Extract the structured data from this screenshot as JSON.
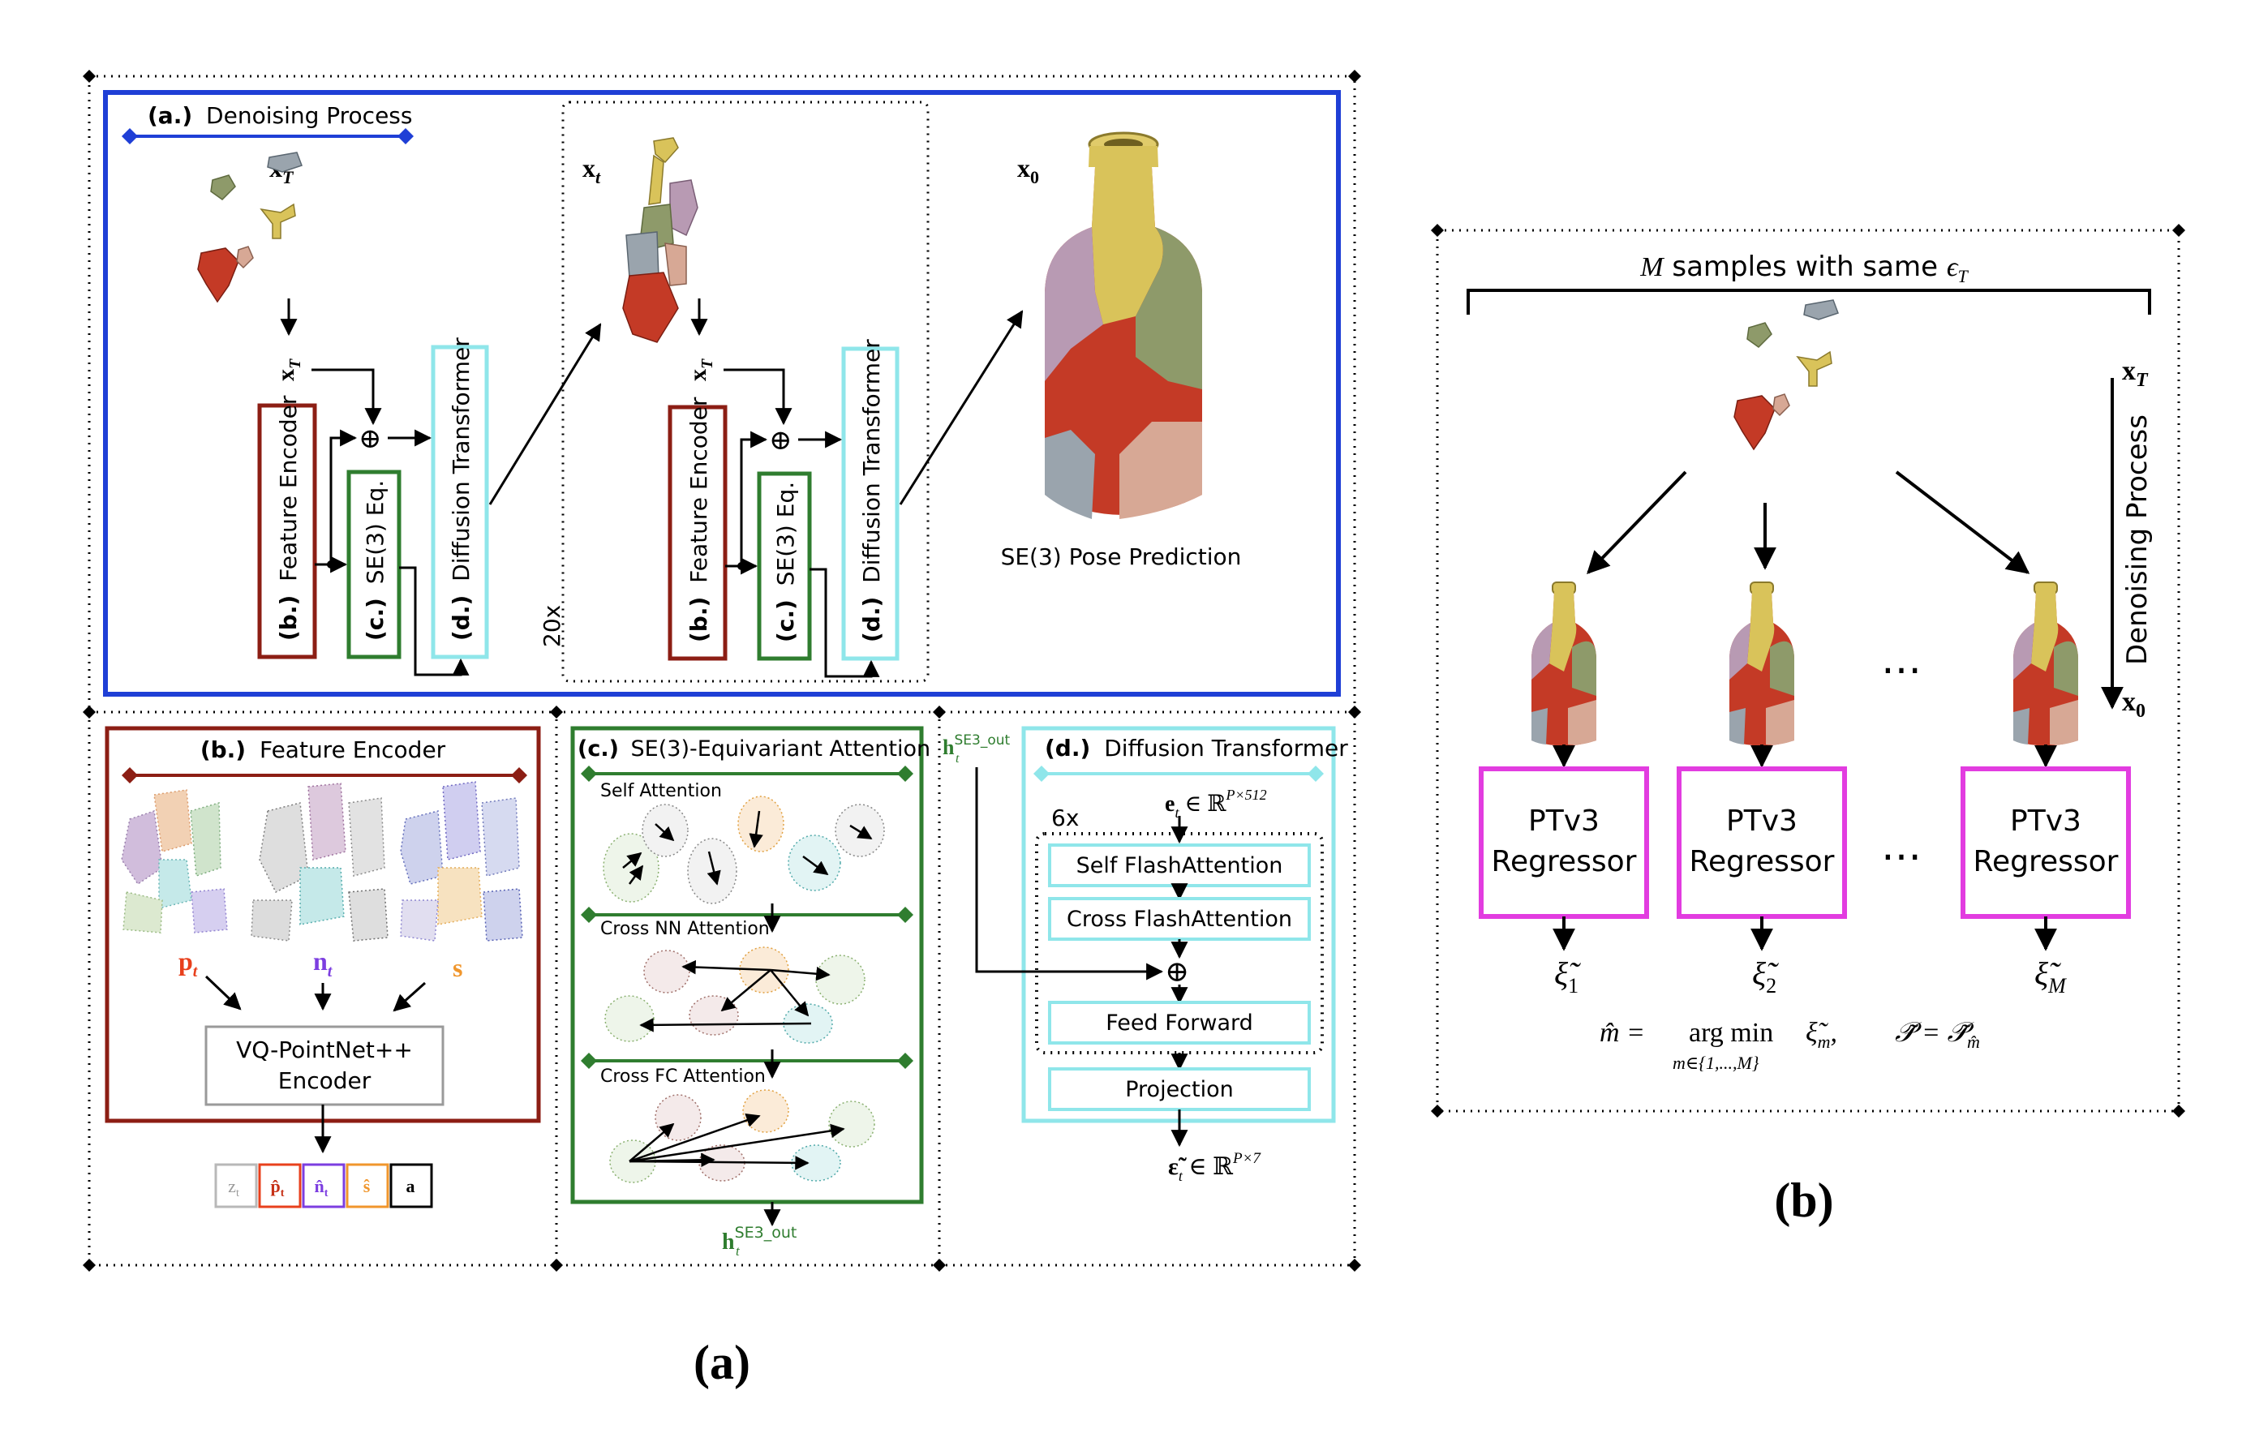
{
  "colors": {
    "blue": "#1f3fd6",
    "brown": "#8c1e14",
    "green": "#2f7d2f",
    "cyan": "#8fe6ea",
    "magenta": "#e23ce0",
    "gray_box": "#9a9a9a",
    "red_frag": "#c43a26",
    "yellow_frag": "#d9c35a",
    "olive_frag": "#8e9a6a",
    "lilac_frag": "#b89ab3",
    "peach_frag": "#d7a895",
    "slate_frag": "#9aa4ad"
  },
  "panel_a": {
    "denoising": {
      "tag": "(a.)",
      "label": "Denoising Process",
      "xT_top": "x",
      "xT_top_sub": "T",
      "xT_arrow": "x",
      "xT_arrow_sub": "T",
      "xt": "x",
      "xt_sub": "t",
      "xT_arrow2": "x",
      "xT_arrow2_sub": "T",
      "x0": "x",
      "x0_sub": "0",
      "repeat": "20x",
      "feature_encoder_tag": "(b.)",
      "feature_encoder": "Feature Encoder",
      "se3_tag": "(c.)",
      "se3": "SE(3) Eq.",
      "dt_tag": "(d.)",
      "dt": "Diffusion Transformer",
      "pose_prediction": "SE(3) Pose Prediction",
      "plus": "⊕"
    },
    "feature_encoder": {
      "tag": "(b.)",
      "title": "Feature Encoder",
      "p_label": "p",
      "p_sub": "t",
      "n_label": "n",
      "n_sub": "t",
      "s_label": "s",
      "encoder_line1": "VQ-PointNet++",
      "encoder_line2": "Encoder",
      "tokens": [
        {
          "text": "z",
          "sub": "t"
        },
        {
          "text": "p̂",
          "sub": "t"
        },
        {
          "text": "n̂",
          "sub": "t"
        },
        {
          "text": "ŝ",
          "sub": ""
        },
        {
          "text": "a",
          "sub": ""
        }
      ]
    },
    "se3_attention": {
      "tag": "(c.)",
      "title": "SE(3)-Equivariant Attention",
      "self_attention": "Self Attention",
      "cross_nn": "Cross NN Attention",
      "cross_fc": "Cross FC Attention",
      "h_out": "h",
      "h_out_sup": "SE3_out",
      "h_out_sub": "t"
    },
    "diffusion_transformer": {
      "tag": "(d.)",
      "title": "Diffusion Transformer",
      "h_in": "h",
      "h_in_sup": "SE3_out",
      "h_in_sub": "t",
      "repeat": "6x",
      "e_input": "e",
      "e_input_sub": "t",
      "e_input_rest": " ∈ ℝ",
      "e_input_sup": "P×512",
      "self_flash": "Self FlashAttention",
      "cross_flash": "Cross FlashAttention",
      "feed_forward": "Feed Forward",
      "projection": "Projection",
      "output": "ε̃",
      "output_sub": "t",
      "output_rest": " ∈ ℝ",
      "output_sup": "P×7",
      "plus": "⊕"
    },
    "caption": "(a)"
  },
  "panel_b": {
    "samples_label_m": "M",
    "samples_label": " samples with same ",
    "samples_eps": "ϵ",
    "samples_eps_sub": "T",
    "xT": "x",
    "xT_sub": "T",
    "x0": "x",
    "x0_sub": "0",
    "denoising": "Denoising Process",
    "dots": "…",
    "regressors": [
      {
        "line1": "PTv3",
        "line2": "Regressor",
        "out": "ξ̃",
        "out_sub": "1"
      },
      {
        "line1": "PTv3",
        "line2": "Regressor",
        "out": "ξ̃",
        "out_sub": "2"
      },
      {
        "line1": "PTv3",
        "line2": "Regressor",
        "out": "ξ̃",
        "out_sub": "M"
      }
    ],
    "formula_left": "m̂ =",
    "formula_op": "arg min",
    "formula_op_sub": "m∈{1,...,M}",
    "formula_term": "ξ̃",
    "formula_term_sub": "m",
    "formula_right": "𝒫̃ = 𝒫̃",
    "formula_right_sub": "m̂",
    "caption": "(b)"
  }
}
